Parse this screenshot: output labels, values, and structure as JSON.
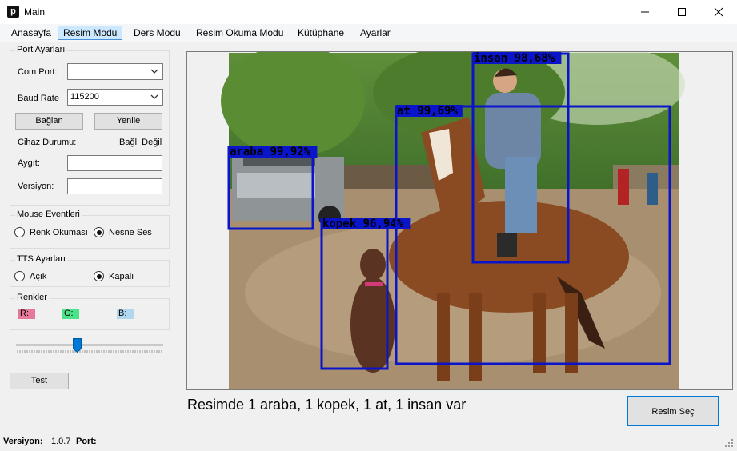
{
  "window": {
    "title": "Main",
    "icon_letter": "p"
  },
  "menu": {
    "items": [
      "Anasayfa",
      "Resim Modu",
      "Ders Modu",
      "Resim Okuma Modu",
      "Kütüphane",
      "Ayarlar"
    ],
    "active": "Resim Modu"
  },
  "port_settings": {
    "title": "Port Ayarları",
    "com_port_label": "Com Port:",
    "com_port_value": "",
    "baud_rate_label": "Baud Rate",
    "baud_rate_value": "115200",
    "connect_button": "Bağlan",
    "refresh_button": "Yenile",
    "device_status_label": "Cihaz Durumu:",
    "device_status_value": "Bağlı Değil",
    "device_label": "Aygıt:",
    "device_value": "",
    "version_label": "Versiyon:",
    "version_value": ""
  },
  "mouse_events": {
    "title": "Mouse Eventleri",
    "option1": "Renk Okuması",
    "option2": "Nesne Ses",
    "selected": "Nesne Ses"
  },
  "tts_settings": {
    "title": "TTS Ayarları",
    "option1": "Açık",
    "option2": "Kapalı",
    "selected": "Kapalı"
  },
  "colors": {
    "title": "Renkler",
    "r_label": "R:",
    "g_label": "G:",
    "b_label": "B:",
    "r_color": "#e6799a",
    "g_color": "#4be38a",
    "b_color": "#b0d8ee"
  },
  "slider": {
    "value": 0.41
  },
  "test_button": "Test",
  "image": {
    "detections": [
      {
        "label": "araba 99,92%"
      },
      {
        "label": "kopek 96,94%"
      },
      {
        "label": "at 99,69%"
      },
      {
        "label": "insan 98,68%"
      }
    ],
    "box_color": "#0a14c8"
  },
  "result_text": "Resimde 1 araba, 1 kopek, 1 at, 1 insan var",
  "select_image_button": "Resim Seç",
  "status": {
    "version_label": "Versiyon:",
    "version_value": "1.0.7",
    "port_label": "Port:",
    "port_value": ""
  }
}
